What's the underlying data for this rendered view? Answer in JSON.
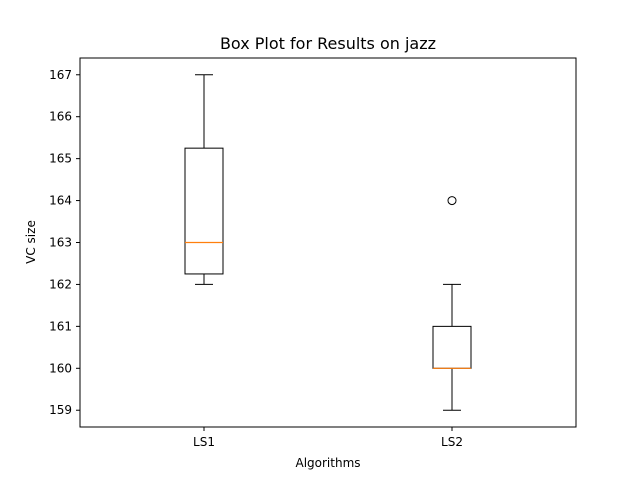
{
  "chart_data": {
    "type": "box",
    "title": "Box Plot for Results on jazz",
    "xlabel": "Algorithms",
    "ylabel": "VC size",
    "categories": [
      "LS1",
      "LS2"
    ],
    "ylim": [
      158.6,
      167.4
    ],
    "yticks": [
      159,
      160,
      161,
      162,
      163,
      164,
      165,
      166,
      167
    ],
    "grid": false,
    "boxes": [
      {
        "name": "LS1",
        "whisker_low": 162,
        "q1": 162.25,
        "median": 163,
        "q3": 165.25,
        "whisker_high": 167,
        "outliers": []
      },
      {
        "name": "LS2",
        "whisker_low": 159,
        "q1": 160,
        "median": 160,
        "q3": 161,
        "whisker_high": 162,
        "outliers": [
          164
        ]
      }
    ],
    "colors": {
      "box": "#000000",
      "median": "#ff7f0e",
      "frame": "#000000"
    }
  }
}
